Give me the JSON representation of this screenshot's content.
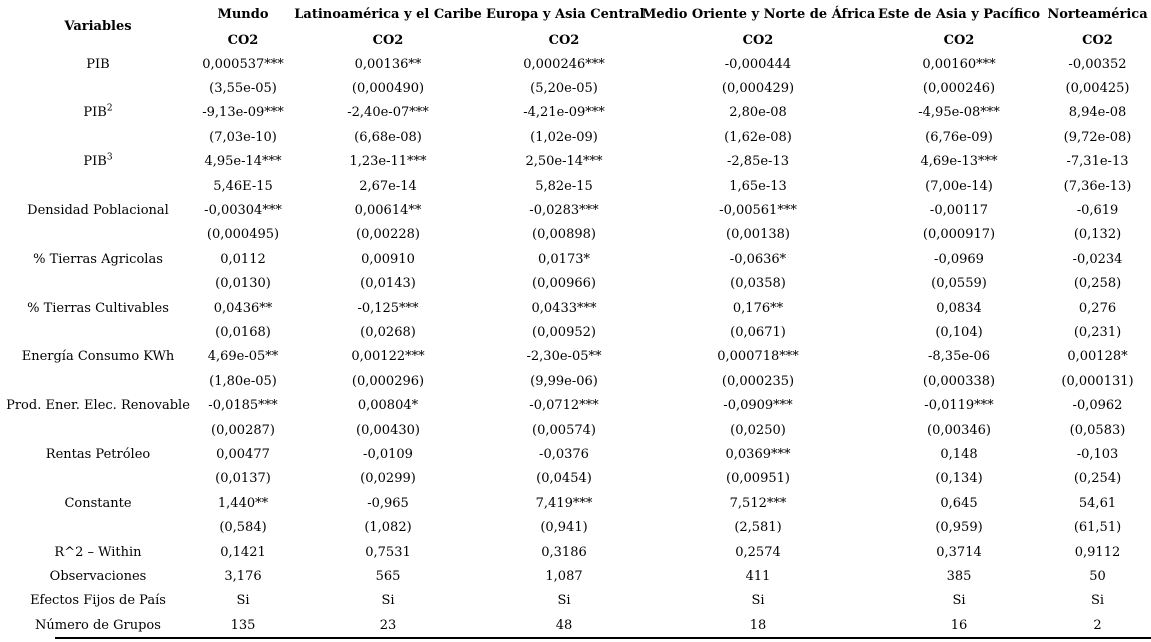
{
  "colors": {
    "text": "#000000",
    "background": "#ffffff",
    "rule": "#000000"
  },
  "table": {
    "variables_header": "Variables",
    "columns": [
      {
        "region": "Mundo",
        "measure": "CO2"
      },
      {
        "region": "Latinoamérica y el Caribe",
        "measure": "CO2"
      },
      {
        "region": "Europa y Asia Central",
        "measure": "CO2"
      },
      {
        "region": "Medio Oriente y Norte de África",
        "measure": "CO2"
      },
      {
        "region": "Este de Asia y Pacífico",
        "measure": "CO2"
      },
      {
        "region": "Norteamérica",
        "measure": "CO2"
      }
    ],
    "rows": [
      {
        "label": "PIB",
        "cells": [
          "0,000537***",
          "0,00136**",
          "0,000246***",
          "-0,000444",
          "0,00160***",
          "-0,00352"
        ]
      },
      {
        "label": "",
        "cells": [
          "(3,55e-05)",
          "(0,000490)",
          "(5,20e-05)",
          "(0,000429)",
          "(0,000246)",
          "(0,00425)"
        ]
      },
      {
        "label": "PIB",
        "sup": "2",
        "cells": [
          "-9,13e-09***",
          "-2,40e-07***",
          "-4,21e-09***",
          "2,80e-08",
          "-4,95e-08***",
          "8,94e-08"
        ]
      },
      {
        "label": "",
        "cells": [
          "(7,03e-10)",
          "(6,68e-08)",
          "(1,02e-09)",
          "(1,62e-08)",
          "(6,76e-09)",
          "(9,72e-08)"
        ]
      },
      {
        "label": "PIB",
        "sup": "3",
        "cells": [
          "4,95e-14***",
          "1,23e-11***",
          "2,50e-14***",
          "-2,85e-13",
          "4,69e-13***",
          "-7,31e-13"
        ]
      },
      {
        "label": "",
        "cells": [
          "5,46E-15",
          "2,67e-14",
          "5,82e-15",
          "1,65e-13",
          "(7,00e-14)",
          "(7,36e-13)"
        ]
      },
      {
        "label": "Densidad Poblacional",
        "cells": [
          "-0,00304***",
          "0,00614**",
          "-0,0283***",
          "-0,00561***",
          "-0,00117",
          "-0,619"
        ]
      },
      {
        "label": "",
        "cells": [
          "(0,000495)",
          "(0,00228)",
          "(0,00898)",
          "(0,00138)",
          "(0,000917)",
          "(0,132)"
        ]
      },
      {
        "label": "% Tierras Agricolas",
        "cells": [
          "0,0112",
          "0,00910",
          "0,0173*",
          "-0,0636*",
          "-0,0969",
          "-0,0234"
        ]
      },
      {
        "label": "",
        "cells": [
          "(0,0130)",
          "(0,0143)",
          "(0,00966)",
          "(0,0358)",
          "(0,0559)",
          "(0,258)"
        ]
      },
      {
        "label": "% Tierras Cultivables",
        "cells": [
          "0,0436**",
          "-0,125***",
          "0,0433***",
          "0,176**",
          "0,0834",
          "0,276"
        ]
      },
      {
        "label": "",
        "cells": [
          "(0,0168)",
          "(0,0268)",
          "(0,00952)",
          "(0,0671)",
          "(0,104)",
          "(0,231)"
        ]
      },
      {
        "label": "Energía Consumo KWh",
        "cells": [
          "4,69e-05**",
          "0,00122***",
          "-2,30e-05**",
          "0,000718***",
          "-8,35e-06",
          "0,00128*"
        ]
      },
      {
        "label": "",
        "cells": [
          "(1,80e-05)",
          "(0,000296)",
          "(9,99e-06)",
          "(0,000235)",
          "(0,000338)",
          "(0,000131)"
        ]
      },
      {
        "label": "Prod. Ener. Elec. Renovable",
        "cells": [
          "-0,0185***",
          "0,00804*",
          "-0,0712***",
          "-0,0909***",
          "-0,0119***",
          "-0,0962"
        ]
      },
      {
        "label": "",
        "cells": [
          "(0,00287)",
          "(0,00430)",
          "(0,00574)",
          "(0,0250)",
          "(0,00346)",
          "(0,0583)"
        ]
      },
      {
        "label": "Rentas Petróleo",
        "cells": [
          "0,00477",
          "-0,0109",
          "-0,0376",
          "0,0369***",
          "0,148",
          "-0,103"
        ]
      },
      {
        "label": "",
        "cells": [
          "(0,0137)",
          "(0,0299)",
          "(0,0454)",
          "(0,00951)",
          "(0,134)",
          "(0,254)"
        ]
      },
      {
        "label": "Constante",
        "cells": [
          "1,440**",
          "-0,965",
          "7,419***",
          "7,512***",
          "0,645",
          "54,61"
        ]
      },
      {
        "label": "",
        "cells": [
          "(0,584)",
          "(1,082)",
          "(0,941)",
          "(2,581)",
          "(0,959)",
          "(61,51)"
        ]
      },
      {
        "label": "R^2 – Within",
        "cells": [
          "0,1421",
          "0,7531",
          "0,3186",
          "0,2574",
          "0,3714",
          "0,9112"
        ]
      },
      {
        "label": "Observaciones",
        "cells": [
          "3,176",
          "565",
          "1,087",
          "411",
          "385",
          "50"
        ]
      },
      {
        "label": "Efectos Fijos de País",
        "cells": [
          "Si",
          "Si",
          "Si",
          "Si",
          "Si",
          "Si"
        ]
      },
      {
        "label": "Número de Grupos",
        "cells": [
          "135",
          "23",
          "48",
          "18",
          "16",
          "2"
        ]
      }
    ]
  }
}
